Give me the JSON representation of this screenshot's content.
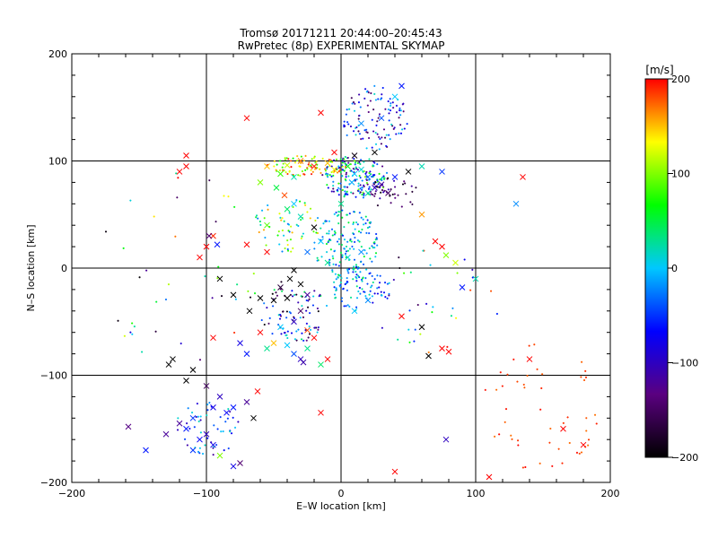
{
  "chart_data": {
    "type": "scatter",
    "title": "Tromsø 20171211 20:44:00–20:45:43",
    "subtitle": "RwPretec (8p) EXPERIMENTAL SKYMAP",
    "xlabel": "E–W location [km]",
    "ylabel": "N–S location [km]",
    "xlim": [
      -200,
      200
    ],
    "ylim": [
      -200,
      200
    ],
    "xticks": [
      "−200",
      "−100",
      "0",
      "100",
      "200"
    ],
    "yticks": [
      "−200",
      "−100",
      "0",
      "100",
      "200"
    ],
    "grid": true,
    "colorbar": {
      "label": "[m/s]",
      "range": [
        -200,
        200
      ],
      "ticks": [
        "200",
        "100",
        "0",
        "−100",
        "−200"
      ],
      "colors": [
        "#000000",
        "#5a0080",
        "#0000ff",
        "#00c8ff",
        "#00ff00",
        "#ffff00",
        "#ff0000"
      ]
    },
    "points": [
      {
        "x": 10,
        "y": 88,
        "v": 0,
        "m": "x"
      },
      {
        "x": 15,
        "y": 92,
        "v": 10,
        "m": "x"
      },
      {
        "x": 20,
        "y": 85,
        "v": -30,
        "m": "x"
      },
      {
        "x": 5,
        "y": 95,
        "v": 60,
        "m": "x"
      },
      {
        "x": -10,
        "y": 98,
        "v": 150,
        "m": "x"
      },
      {
        "x": -20,
        "y": 95,
        "v": 190,
        "m": "x"
      },
      {
        "x": -30,
        "y": 100,
        "v": 170,
        "m": "x"
      },
      {
        "x": -40,
        "y": 96,
        "v": 120,
        "m": "x"
      },
      {
        "x": -45,
        "y": 88,
        "v": 80,
        "m": "x"
      },
      {
        "x": -35,
        "y": 85,
        "v": 20,
        "m": "x"
      },
      {
        "x": -5,
        "y": 92,
        "v": 130,
        "m": "x"
      },
      {
        "x": 8,
        "y": 80,
        "v": -10,
        "m": "x"
      },
      {
        "x": 30,
        "y": 78,
        "v": -120,
        "m": "x"
      },
      {
        "x": 35,
        "y": 70,
        "v": -150,
        "m": "x"
      },
      {
        "x": 25,
        "y": 75,
        "v": -100,
        "m": "x"
      },
      {
        "x": 40,
        "y": 85,
        "v": -60,
        "m": "x"
      },
      {
        "x": 50,
        "y": 90,
        "v": -200,
        "m": "x"
      },
      {
        "x": 60,
        "y": 95,
        "v": 20,
        "m": "x"
      },
      {
        "x": 75,
        "y": 90,
        "v": -50,
        "m": "x"
      },
      {
        "x": -70,
        "y": 140,
        "v": 200,
        "m": "x"
      },
      {
        "x": -15,
        "y": 145,
        "v": 200,
        "m": "x"
      },
      {
        "x": -115,
        "y": 105,
        "v": 200,
        "m": "x"
      },
      {
        "x": -120,
        "y": 90,
        "v": 200,
        "m": "x"
      },
      {
        "x": -115,
        "y": 95,
        "v": 200,
        "m": "x"
      },
      {
        "x": -95,
        "y": 30,
        "v": 190,
        "m": "x"
      },
      {
        "x": -100,
        "y": 20,
        "v": 200,
        "m": "x"
      },
      {
        "x": -105,
        "y": 10,
        "v": 200,
        "m": "x"
      },
      {
        "x": -98,
        "y": 30,
        "v": -140,
        "m": "x"
      },
      {
        "x": -92,
        "y": 22,
        "v": -60,
        "m": "x"
      },
      {
        "x": -70,
        "y": 22,
        "v": 200,
        "m": "x"
      },
      {
        "x": -55,
        "y": 15,
        "v": 200,
        "m": "x"
      },
      {
        "x": -55,
        "y": 40,
        "v": 90,
        "m": "x"
      },
      {
        "x": -40,
        "y": 55,
        "v": 40,
        "m": "x"
      },
      {
        "x": -30,
        "y": 48,
        "v": 20,
        "m": "x"
      },
      {
        "x": -20,
        "y": 38,
        "v": -200,
        "m": "x"
      },
      {
        "x": -15,
        "y": 25,
        "v": 0,
        "m": "x"
      },
      {
        "x": -25,
        "y": 15,
        "v": -30,
        "m": "x"
      },
      {
        "x": -10,
        "y": 5,
        "v": 30,
        "m": "x"
      },
      {
        "x": 5,
        "y": 10,
        "v": 10,
        "m": "x"
      },
      {
        "x": 15,
        "y": 15,
        "v": -20,
        "m": "x"
      },
      {
        "x": -35,
        "y": -2,
        "v": -200,
        "m": "x"
      },
      {
        "x": -38,
        "y": -10,
        "v": -200,
        "m": "x"
      },
      {
        "x": -45,
        "y": -18,
        "v": -170,
        "m": "x"
      },
      {
        "x": -30,
        "y": -15,
        "v": -200,
        "m": "x"
      },
      {
        "x": -25,
        "y": -25,
        "v": -120,
        "m": "x"
      },
      {
        "x": -40,
        "y": -28,
        "v": -200,
        "m": "x"
      },
      {
        "x": -50,
        "y": -30,
        "v": -200,
        "m": "x"
      },
      {
        "x": -60,
        "y": -28,
        "v": -200,
        "m": "x"
      },
      {
        "x": -68,
        "y": -40,
        "v": -200,
        "m": "x"
      },
      {
        "x": -80,
        "y": -25,
        "v": -200,
        "m": "x"
      },
      {
        "x": -90,
        "y": -10,
        "v": -200,
        "m": "x"
      },
      {
        "x": -30,
        "y": -40,
        "v": -150,
        "m": "x"
      },
      {
        "x": -35,
        "y": -50,
        "v": -100,
        "m": "x"
      },
      {
        "x": -45,
        "y": -55,
        "v": 0,
        "m": "x"
      },
      {
        "x": -25,
        "y": -58,
        "v": 180,
        "m": "x"
      },
      {
        "x": -20,
        "y": -65,
        "v": 200,
        "m": "x"
      },
      {
        "x": -50,
        "y": -70,
        "v": 150,
        "m": "x"
      },
      {
        "x": -55,
        "y": -75,
        "v": 30,
        "m": "x"
      },
      {
        "x": -40,
        "y": -72,
        "v": 0,
        "m": "x"
      },
      {
        "x": -35,
        "y": -80,
        "v": -40,
        "m": "x"
      },
      {
        "x": -30,
        "y": -85,
        "v": -100,
        "m": "x"
      },
      {
        "x": -28,
        "y": -88,
        "v": -110,
        "m": "x"
      },
      {
        "x": -25,
        "y": -75,
        "v": 30,
        "m": "x"
      },
      {
        "x": -15,
        "y": -90,
        "v": 40,
        "m": "x"
      },
      {
        "x": -10,
        "y": -85,
        "v": 200,
        "m": "x"
      },
      {
        "x": -60,
        "y": -60,
        "v": 200,
        "m": "x"
      },
      {
        "x": -70,
        "y": -80,
        "v": -60,
        "m": "x"
      },
      {
        "x": -75,
        "y": -70,
        "v": -80,
        "m": "x"
      },
      {
        "x": -95,
        "y": -65,
        "v": 200,
        "m": "x"
      },
      {
        "x": -125,
        "y": -85,
        "v": -200,
        "m": "x"
      },
      {
        "x": -128,
        "y": -90,
        "v": -200,
        "m": "x"
      },
      {
        "x": -110,
        "y": -95,
        "v": -200,
        "m": "x"
      },
      {
        "x": -115,
        "y": -105,
        "v": -200,
        "m": "x"
      },
      {
        "x": -100,
        "y": -110,
        "v": -150,
        "m": "x"
      },
      {
        "x": -90,
        "y": -120,
        "v": -100,
        "m": "x"
      },
      {
        "x": -95,
        "y": -130,
        "v": -80,
        "m": "x"
      },
      {
        "x": -85,
        "y": -135,
        "v": -70,
        "m": "x"
      },
      {
        "x": -80,
        "y": -130,
        "v": -60,
        "m": "x"
      },
      {
        "x": -70,
        "y": -125,
        "v": -120,
        "m": "x"
      },
      {
        "x": -65,
        "y": -140,
        "v": -200,
        "m": "x"
      },
      {
        "x": -62,
        "y": -115,
        "v": 200,
        "m": "x"
      },
      {
        "x": -110,
        "y": -140,
        "v": -50,
        "m": "x"
      },
      {
        "x": -115,
        "y": -150,
        "v": -60,
        "m": "x"
      },
      {
        "x": -120,
        "y": -145,
        "v": -120,
        "m": "x"
      },
      {
        "x": -105,
        "y": -160,
        "v": -70,
        "m": "x"
      },
      {
        "x": -100,
        "y": -155,
        "v": -100,
        "m": "x"
      },
      {
        "x": -95,
        "y": -165,
        "v": -80,
        "m": "x"
      },
      {
        "x": -110,
        "y": -170,
        "v": -50,
        "m": "x"
      },
      {
        "x": -90,
        "y": -175,
        "v": 100,
        "m": "x"
      },
      {
        "x": -80,
        "y": -185,
        "v": -80,
        "m": "x"
      },
      {
        "x": -75,
        "y": -182,
        "v": -140,
        "m": "x"
      },
      {
        "x": -130,
        "y": -155,
        "v": -120,
        "m": "x"
      },
      {
        "x": -145,
        "y": -170,
        "v": -60,
        "m": "x"
      },
      {
        "x": -158,
        "y": -148,
        "v": -130,
        "m": "x"
      },
      {
        "x": 10,
        "y": -40,
        "v": 0,
        "m": "x"
      },
      {
        "x": 20,
        "y": -30,
        "v": -20,
        "m": "x"
      },
      {
        "x": 45,
        "y": -45,
        "v": 200,
        "m": "x"
      },
      {
        "x": 60,
        "y": -55,
        "v": -200,
        "m": "x"
      },
      {
        "x": 65,
        "y": -82,
        "v": -200,
        "m": "x"
      },
      {
        "x": 75,
        "y": -75,
        "v": 200,
        "m": "x"
      },
      {
        "x": 80,
        "y": -78,
        "v": 200,
        "m": "x"
      },
      {
        "x": 90,
        "y": -18,
        "v": -60,
        "m": "x"
      },
      {
        "x": 100,
        "y": -10,
        "v": 20,
        "m": "x"
      },
      {
        "x": 85,
        "y": 5,
        "v": 120,
        "m": "x"
      },
      {
        "x": 78,
        "y": 12,
        "v": 100,
        "m": "x"
      },
      {
        "x": 70,
        "y": 25,
        "v": 200,
        "m": "x"
      },
      {
        "x": 75,
        "y": 20,
        "v": 200,
        "m": "x"
      },
      {
        "x": 60,
        "y": 50,
        "v": 160,
        "m": "x"
      },
      {
        "x": 130,
        "y": 60,
        "v": -20,
        "m": "x"
      },
      {
        "x": 135,
        "y": 85,
        "v": 200,
        "m": "x"
      },
      {
        "x": 140,
        "y": -85,
        "v": 200,
        "m": "x"
      },
      {
        "x": 165,
        "y": -150,
        "v": 200,
        "m": "x"
      },
      {
        "x": 180,
        "y": -165,
        "v": 200,
        "m": "x"
      },
      {
        "x": 110,
        "y": -195,
        "v": 200,
        "m": "x"
      },
      {
        "x": 40,
        "y": -190,
        "v": 200,
        "m": "x"
      },
      {
        "x": 78,
        "y": -160,
        "v": -100,
        "m": "x"
      },
      {
        "x": -15,
        "y": -135,
        "v": 200,
        "m": "x"
      },
      {
        "x": 15,
        "y": 135,
        "v": -20,
        "m": "x"
      },
      {
        "x": 30,
        "y": 140,
        "v": -40,
        "m": "x"
      },
      {
        "x": 40,
        "y": 160,
        "v": 0,
        "m": "x"
      },
      {
        "x": 45,
        "y": 170,
        "v": -60,
        "m": "x"
      },
      {
        "x": 25,
        "y": 108,
        "v": -200,
        "m": "x"
      },
      {
        "x": 10,
        "y": 105,
        "v": -190,
        "m": "x"
      },
      {
        "x": -5,
        "y": 108,
        "v": 200,
        "m": "x"
      },
      {
        "x": 20,
        "y": 70,
        "v": 20,
        "m": "x"
      },
      {
        "x": 0,
        "y": 60,
        "v": 30,
        "m": "x"
      },
      {
        "x": -60,
        "y": 80,
        "v": 100,
        "m": "x"
      },
      {
        "x": -55,
        "y": 95,
        "v": 150,
        "m": "x"
      },
      {
        "x": -48,
        "y": 75,
        "v": 50,
        "m": "x"
      },
      {
        "x": -35,
        "y": 60,
        "v": 0,
        "m": "x"
      },
      {
        "x": -42,
        "y": 68,
        "v": 180,
        "m": "x"
      }
    ],
    "clusters": [
      {
        "cx": 10,
        "cy": 85,
        "rx": 25,
        "ry": 20,
        "n": 180,
        "vmin": -150,
        "vmax": 100,
        "m": "d"
      },
      {
        "cx": -25,
        "cy": 95,
        "rx": 30,
        "ry": 10,
        "n": 80,
        "vmin": 60,
        "vmax": 200,
        "m": "d"
      },
      {
        "cx": 25,
        "cy": 140,
        "rx": 25,
        "ry": 30,
        "n": 110,
        "vmin": -160,
        "vmax": 20,
        "m": "d"
      },
      {
        "cx": 5,
        "cy": 20,
        "rx": 25,
        "ry": 35,
        "n": 170,
        "vmin": -60,
        "vmax": 60,
        "m": "d"
      },
      {
        "cx": 15,
        "cy": -20,
        "rx": 22,
        "ry": 20,
        "n": 70,
        "vmin": -80,
        "vmax": 40,
        "m": "d"
      },
      {
        "cx": -35,
        "cy": -40,
        "rx": 25,
        "ry": 30,
        "n": 90,
        "vmin": -200,
        "vmax": 50,
        "m": "d"
      },
      {
        "cx": -40,
        "cy": 40,
        "rx": 25,
        "ry": 25,
        "n": 60,
        "vmin": -40,
        "vmax": 160,
        "m": "d"
      },
      {
        "cx": -100,
        "cy": -150,
        "rx": 25,
        "ry": 25,
        "n": 50,
        "vmin": -120,
        "vmax": 20,
        "m": "d"
      },
      {
        "cx": 150,
        "cy": -130,
        "rx": 45,
        "ry": 60,
        "n": 50,
        "vmin": 170,
        "vmax": 200,
        "m": "d"
      },
      {
        "cx": 70,
        "cy": -30,
        "rx": 50,
        "ry": 50,
        "n": 35,
        "vmin": -200,
        "vmax": 200,
        "m": "d"
      },
      {
        "cx": -120,
        "cy": 0,
        "rx": 60,
        "ry": 90,
        "n": 40,
        "vmin": -200,
        "vmax": 200,
        "m": "d"
      },
      {
        "cx": 40,
        "cy": 70,
        "rx": 20,
        "ry": 15,
        "n": 40,
        "vmin": -200,
        "vmax": -100,
        "m": "d"
      }
    ]
  }
}
